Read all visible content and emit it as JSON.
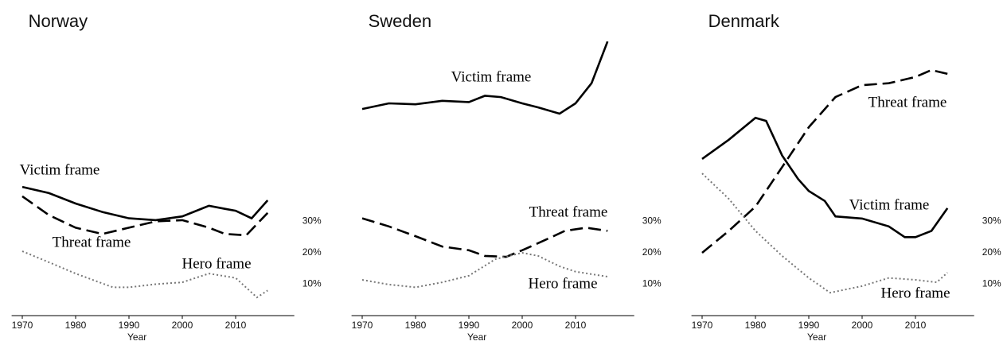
{
  "chart_data": [
    {
      "type": "line",
      "title": "Norway",
      "x_label": "Year",
      "xlim": [
        1968,
        2021
      ],
      "xticks": [
        1970,
        1980,
        1990,
        2000,
        2010
      ],
      "ylim": [
        0,
        90
      ],
      "yticks": [
        {
          "value": 10,
          "label": "10%"
        },
        {
          "value": 20,
          "label": "20%"
        },
        {
          "value": 30,
          "label": "30%"
        }
      ],
      "series": [
        {
          "name": "Victim frame",
          "color": "#000000",
          "style": "solid",
          "x": [
            1970,
            1975,
            1980,
            1985,
            1990,
            1995,
            2000,
            2005,
            2008,
            2010,
            2013,
            2016
          ],
          "values": [
            41,
            39,
            35.7,
            33,
            31,
            30.4,
            31.6,
            35,
            34,
            33.4,
            31,
            36.7
          ]
        },
        {
          "name": "Threat frame",
          "color": "#000000",
          "style": "dashed",
          "x": [
            1970,
            1975,
            1980,
            1985,
            1990,
            1995,
            2000,
            2005,
            2008,
            2012,
            2016
          ],
          "values": [
            38,
            32,
            28,
            26,
            28,
            30,
            30.4,
            28,
            26,
            25.6,
            32.7
          ]
        },
        {
          "name": "Hero frame",
          "color": "#777777",
          "style": "dotted",
          "x": [
            1970,
            1975,
            1980,
            1987,
            1990,
            1995,
            2000,
            2005,
            2010,
            2014,
            2016
          ],
          "values": [
            20.5,
            17,
            13.4,
            9,
            9,
            10,
            10.6,
            13.4,
            12,
            5.8,
            8
          ]
        }
      ]
    },
    {
      "type": "line",
      "title": "Sweden",
      "x_label": "Year",
      "xlim": [
        1968,
        2021
      ],
      "xticks": [
        1970,
        1980,
        1990,
        2000,
        2010
      ],
      "ylim": [
        0,
        90
      ],
      "yticks": [
        {
          "value": 10,
          "label": "10%"
        },
        {
          "value": 20,
          "label": "20%"
        },
        {
          "value": 30,
          "label": "30%"
        }
      ],
      "series": [
        {
          "name": "Victim frame",
          "color": "#000000",
          "style": "solid",
          "x": [
            1970,
            1975,
            1980,
            1985,
            1990,
            1993,
            1996,
            2000,
            2003,
            2007,
            2010,
            2013,
            2016
          ],
          "values": [
            65.8,
            67.6,
            67.3,
            68.4,
            68,
            70,
            69.6,
            67.6,
            66.3,
            64.3,
            67.6,
            74,
            87.3
          ]
        },
        {
          "name": "Threat frame",
          "color": "#000000",
          "style": "dashed",
          "x": [
            1970,
            1975,
            1980,
            1985,
            1990,
            1993,
            1997,
            2000,
            2005,
            2008,
            2012,
            2016
          ],
          "values": [
            31,
            28.4,
            25.3,
            22,
            20.8,
            19,
            18.7,
            20.8,
            24.6,
            27,
            28,
            27
          ]
        },
        {
          "name": "Hero frame",
          "color": "#777777",
          "style": "dotted",
          "x": [
            1970,
            1975,
            1980,
            1985,
            1990,
            1995,
            2000,
            2003,
            2007,
            2010,
            2016
          ],
          "values": [
            11.4,
            9.9,
            9,
            10.6,
            12.7,
            18,
            20,
            19,
            15.7,
            14,
            12.4
          ]
        }
      ]
    },
    {
      "type": "line",
      "title": "Denmark",
      "x_label": "Year",
      "xlim": [
        1968,
        2021
      ],
      "xticks": [
        1970,
        1980,
        1990,
        2000,
        2010
      ],
      "ylim": [
        0,
        90
      ],
      "yticks": [
        {
          "value": 10,
          "label": "10%"
        },
        {
          "value": 20,
          "label": "20%"
        },
        {
          "value": 30,
          "label": "30%"
        }
      ],
      "series": [
        {
          "name": "Threat frame",
          "color": "#000000",
          "style": "dashed",
          "x": [
            1970,
            1975,
            1980,
            1985,
            1990,
            1995,
            2000,
            2005,
            2010,
            2013,
            2016
          ],
          "values": [
            20,
            27,
            34.7,
            47.3,
            60,
            69.6,
            73.4,
            74,
            76,
            78.2,
            77
          ]
        },
        {
          "name": "Victim frame",
          "color": "#000000",
          "style": "solid",
          "x": [
            1970,
            1975,
            1980,
            1982,
            1985,
            1988,
            1990,
            1993,
            1995,
            2000,
            2005,
            2008,
            2010,
            2013,
            2016
          ],
          "values": [
            49.9,
            56,
            63,
            62,
            51,
            43.5,
            39.7,
            36.5,
            31.6,
            30.9,
            28.4,
            25,
            25,
            27,
            34.2
          ]
        },
        {
          "name": "Hero frame",
          "color": "#777777",
          "style": "dotted",
          "x": [
            1970,
            1975,
            1980,
            1985,
            1990,
            1994,
            2000,
            2005,
            2010,
            2014,
            2016
          ],
          "values": [
            45.3,
            37.2,
            27,
            19,
            12,
            7.3,
            9.4,
            12,
            11.4,
            10.6,
            13.7
          ]
        }
      ]
    }
  ]
}
